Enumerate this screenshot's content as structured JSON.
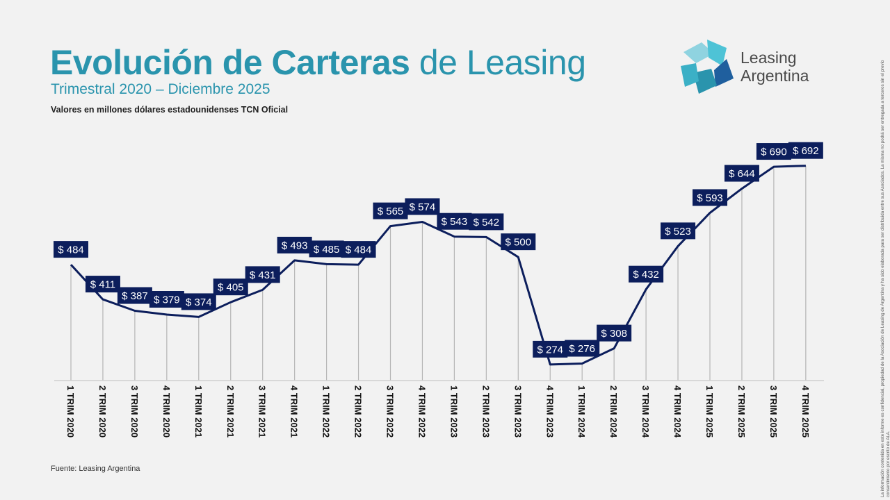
{
  "header": {
    "title_bold": "Evolución de Carteras",
    "title_light": " de Leasing",
    "subtitle": "Trimestral 2020 – Diciembre 2025",
    "units": "Valores en millones dólares estadounidenses TCN Oficial"
  },
  "logo": {
    "line1": "Leasing",
    "line2": "Argentina",
    "icon": "star-logo-icon",
    "colors": [
      "#4ec3d6",
      "#2a94ad",
      "#1f5f9e",
      "#8fd3e0"
    ]
  },
  "footer": {
    "source": "Fuente: Leasing Argentina"
  },
  "disclaimer": "La información contenida en este informe es confidencial, propiedad de la Asociación de Leasing de Argentina y ha sido elaborada para ser distribuida entre sus Asociados. La misma no podrá ser entregada a terceros sin el previo consentimiento por escrito de ALA.",
  "colors": {
    "title": "#2a94ad",
    "line": "#0c1e5c",
    "label_bg": "#0c1e5c",
    "label_text": "#ffffff",
    "background": "#f2f2f2"
  },
  "chart_data": {
    "type": "line",
    "categories": [
      "1 TRIM 2020",
      "2 TRIM 2020",
      "3 TRIM 2020",
      "4 TRIM 2020",
      "1 TRIM 2021",
      "2 TRIM 2021",
      "3 TRIM 2021",
      "4 TRIM 2021",
      "1 TRIM 2022",
      "2 TRIM 2022",
      "3 TRIM 2022",
      "4 TRIM 2022",
      "1 TRIM 2023",
      "2 TRIM 2023",
      "3 TRIM 2023",
      "4 TRIM 2023",
      "1 TRIM 2024",
      "2 TRIM 2024",
      "3 TRIM 2024",
      "4 TRIM 2024",
      "1 TRIM 2025",
      "2 TRIM 2025",
      "3 TRIM 2025",
      "4 TRIM 2025"
    ],
    "values": [
      484,
      411,
      387,
      379,
      374,
      405,
      431,
      493,
      485,
      484,
      565,
      574,
      543,
      542,
      500,
      274,
      276,
      308,
      432,
      523,
      593,
      644,
      690,
      692
    ],
    "labels": [
      "$ 484",
      "$ 411",
      "$ 387",
      "$ 379",
      "$ 374",
      "$ 405",
      "$ 431",
      "$ 493",
      "$ 485",
      "$ 484",
      "$ 565",
      "$ 574",
      "$ 543",
      "$ 542",
      "$ 500",
      "$ 274",
      "$ 276",
      "$ 308",
      "$ 432",
      "$ 523",
      "$ 593",
      "$ 644",
      "$ 690",
      "$ 692"
    ],
    "drop_lines": true,
    "grid": false,
    "legend": "none"
  }
}
